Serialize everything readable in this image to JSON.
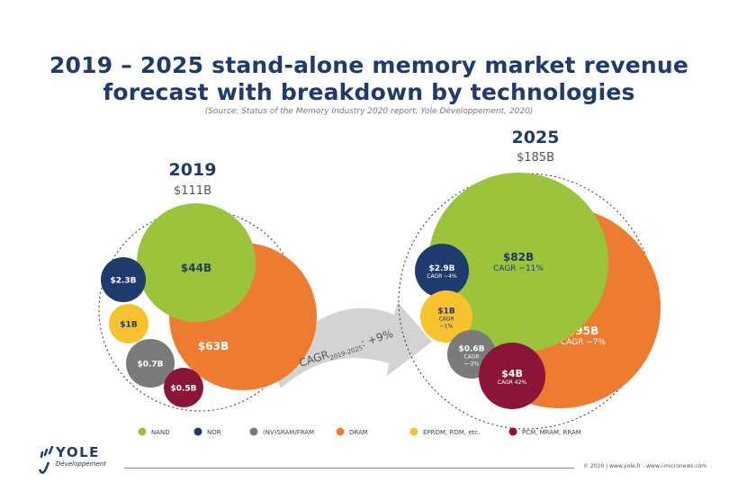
{
  "title": {
    "line1": "2019 – 2025 stand-alone memory market revenue",
    "line2": "forecast with breakdown by technologies"
  },
  "source": "(Source: Status of the Memory Industry 2020 report, Yole Développement, 2020)",
  "chart_data": {
    "type": "bubble",
    "title": "2019 – 2025 stand-alone memory market revenue forecast with breakdown by technologies",
    "unit": "$B",
    "groups": [
      {
        "year": "2019",
        "total_label": "$111B",
        "total": 111,
        "segments": [
          {
            "tech": "DRAM",
            "value": 63,
            "label": "$63B",
            "cagr": ""
          },
          {
            "tech": "NAND",
            "value": 44,
            "label": "$44B",
            "cagr": ""
          },
          {
            "tech": "NOR",
            "value": 2.3,
            "label": "$2.3B",
            "cagr": ""
          },
          {
            "tech": "EPROM, ROM, etc.",
            "value": 1,
            "label": "$1B",
            "cagr": ""
          },
          {
            "tech": "(NV)SRAM/FRAM",
            "value": 0.7,
            "label": "$0.7B",
            "cagr": ""
          },
          {
            "tech": "PCM, MRAM, RRAM",
            "value": 0.5,
            "label": "$0.5B",
            "cagr": ""
          }
        ]
      },
      {
        "year": "2025",
        "total_label": "$185B",
        "total": 185,
        "segments": [
          {
            "tech": "DRAM",
            "value": 95,
            "label": "$95B",
            "cagr": "CAGR ~7%"
          },
          {
            "tech": "NAND",
            "value": 82,
            "label": "$82B",
            "cagr": "CAGR ~11%"
          },
          {
            "tech": "NOR",
            "value": 2.9,
            "label": "$2.9B",
            "cagr": "CAGR ~4%"
          },
          {
            "tech": "EPROM, ROM, etc.",
            "value": 1,
            "label": "$1B",
            "cagr_lines": [
              "CAGR",
              "~1%"
            ]
          },
          {
            "tech": "(NV)SRAM/FRAM",
            "value": 0.6,
            "label": "$0.6B",
            "cagr_lines": [
              "CAGR",
              "~-2%"
            ]
          },
          {
            "tech": "PCM, MRAM, RRAM",
            "value": 4,
            "label": "$4B",
            "cagr": "CAGR 42%"
          }
        ]
      }
    ],
    "overall_cagr": {
      "prefix": "CAGR",
      "subscript": "2019-2025",
      "suffix": ": +9%"
    },
    "legend": [
      {
        "name": "NAND",
        "color": "#9cc43b"
      },
      {
        "name": "NOR",
        "color": "#1f3a6d"
      },
      {
        "name": "(NV)SRAM/FRAM",
        "color": "#7b7b7b"
      },
      {
        "name": "DRAM",
        "color": "#ee7c30"
      },
      {
        "name": "EPROM, ROM, etc.",
        "color": "#f8c12e"
      },
      {
        "name": "PCM, MRAM, RRAM",
        "color": "#8b1538"
      }
    ]
  },
  "colors": {
    "NAND": "#9cc43b",
    "DRAM": "#ee7c30",
    "NOR": "#1f3a6d",
    "EPROM": "#f8c12e",
    "SRAM": "#7b7b7b",
    "PCM": "#8b1538",
    "title": "#1f3a6d",
    "arrow": "#d3d3d3"
  },
  "footer": {
    "copyright": "© 2020 | www.yole.fr - www.i-micronews.com",
    "logo_main": "YOLE",
    "logo_sub": "Développement"
  }
}
